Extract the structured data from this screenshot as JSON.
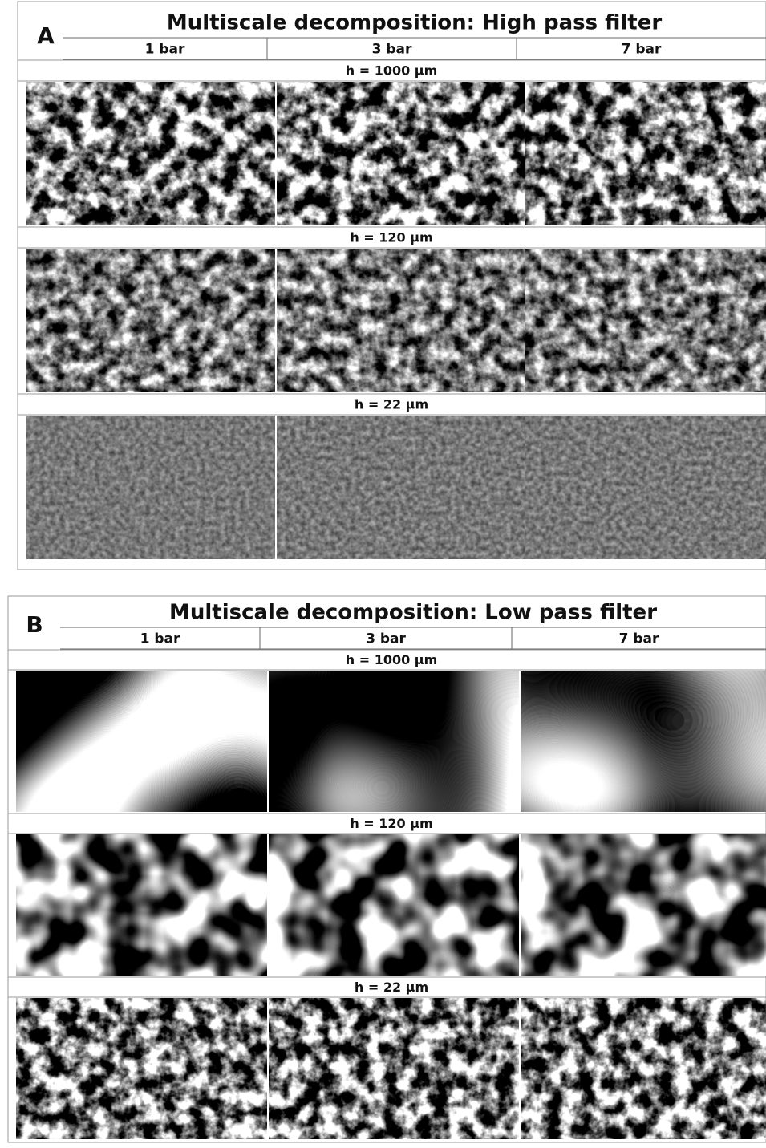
{
  "panels": [
    {
      "label": "A",
      "title": "Multiscale decomposition: High pass filter",
      "columns": [
        "1 bar",
        "3 bar",
        "7 bar"
      ],
      "rows": [
        "h = 1000 µm",
        "h = 120 µm",
        "h = 22 µm"
      ]
    },
    {
      "label": "B",
      "title": "Multiscale decomposition: Low pass filter",
      "columns": [
        "1 bar",
        "3 bar",
        "7 bar"
      ],
      "rows": [
        "h = 1000 µm",
        "h = 120 µm",
        "h = 22 µm"
      ]
    }
  ]
}
